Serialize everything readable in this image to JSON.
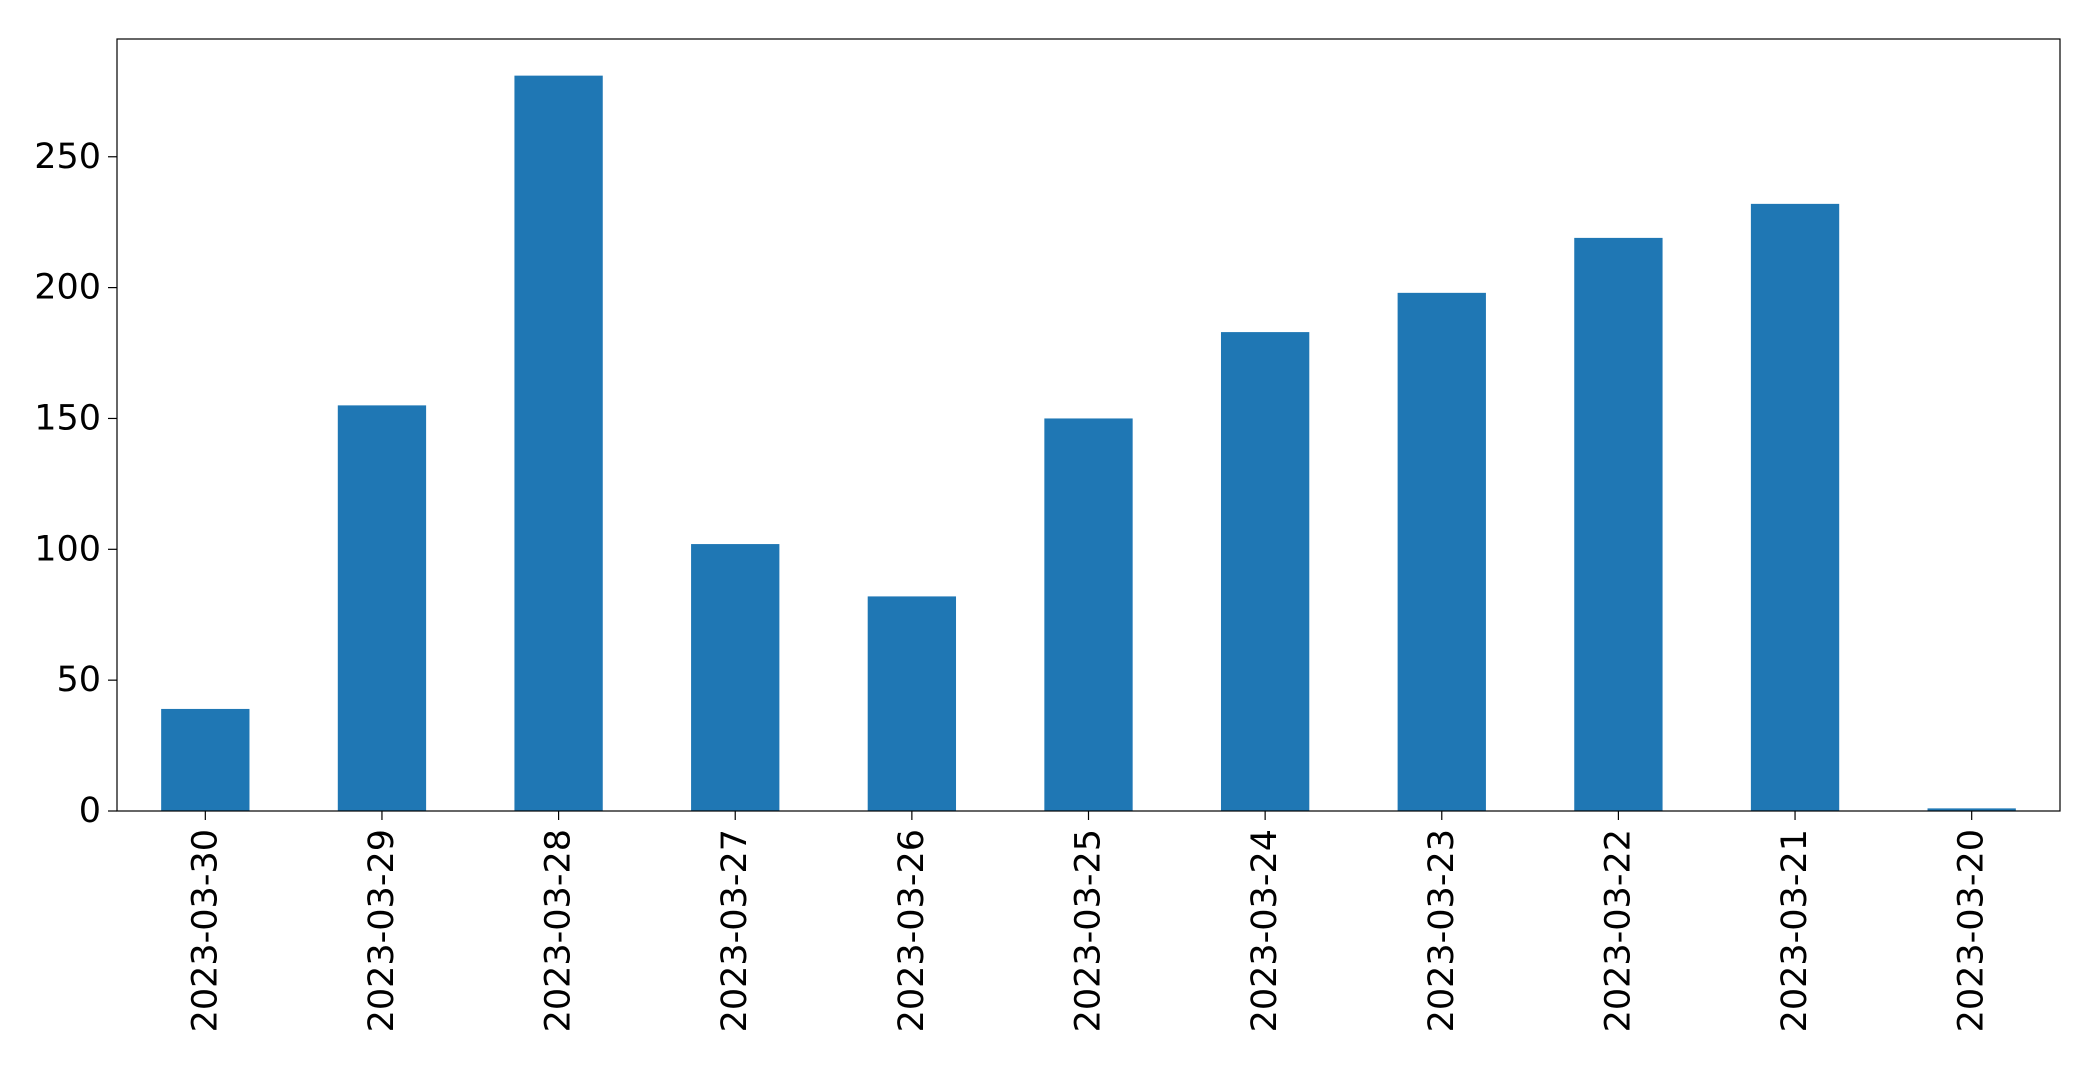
{
  "chart_data": {
    "type": "bar",
    "categories": [
      "2023-03-30",
      "2023-03-29",
      "2023-03-28",
      "2023-03-27",
      "2023-03-26",
      "2023-03-25",
      "2023-03-24",
      "2023-03-23",
      "2023-03-22",
      "2023-03-21",
      "2023-03-20"
    ],
    "values": [
      39,
      155,
      281,
      102,
      82,
      150,
      183,
      198,
      219,
      232,
      1
    ],
    "title": "",
    "xlabel": "",
    "ylabel": "",
    "ylim": [
      0,
      295
    ],
    "yticks": [
      0,
      50,
      100,
      150,
      200,
      250
    ],
    "bar_color": "#1f77b4",
    "grid": false,
    "legend": "none",
    "xtick_rotation": "vertical"
  }
}
